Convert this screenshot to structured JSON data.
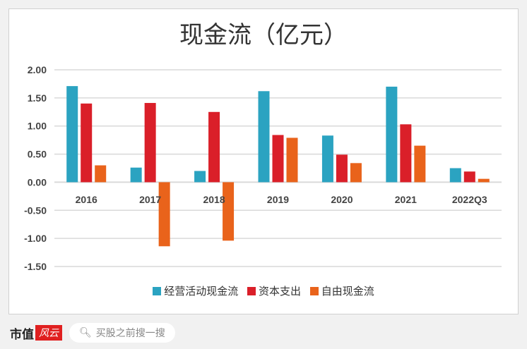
{
  "chart_data": {
    "type": "bar",
    "title": "现金流（亿元）",
    "categories": [
      "2016",
      "2017",
      "2018",
      "2019",
      "2020",
      "2021",
      "2022Q3"
    ],
    "series": [
      {
        "name": "经营活动现金流",
        "color": "#2ba3c1",
        "values": [
          1.71,
          0.26,
          0.2,
          1.62,
          0.83,
          1.7,
          0.25
        ]
      },
      {
        "name": "资本支出",
        "color": "#da1f29",
        "values": [
          1.4,
          1.41,
          1.25,
          0.84,
          0.49,
          1.03,
          0.19
        ]
      },
      {
        "name": "自由现金流",
        "color": "#e9631b",
        "values": [
          0.3,
          -1.14,
          -1.04,
          0.79,
          0.34,
          0.65,
          0.06
        ]
      }
    ],
    "yticks": [
      "2.00",
      "1.50",
      "1.00",
      "0.50",
      "0.00",
      "-0.50",
      "-1.00",
      "-1.50"
    ],
    "ylim": [
      -1.5,
      2.0
    ],
    "grid": true,
    "legend": "bottom"
  },
  "footer": {
    "brand": "市值",
    "brand_logo": "风云",
    "search_placeholder": "买股之前搜一搜"
  },
  "watermark": "市值风云"
}
